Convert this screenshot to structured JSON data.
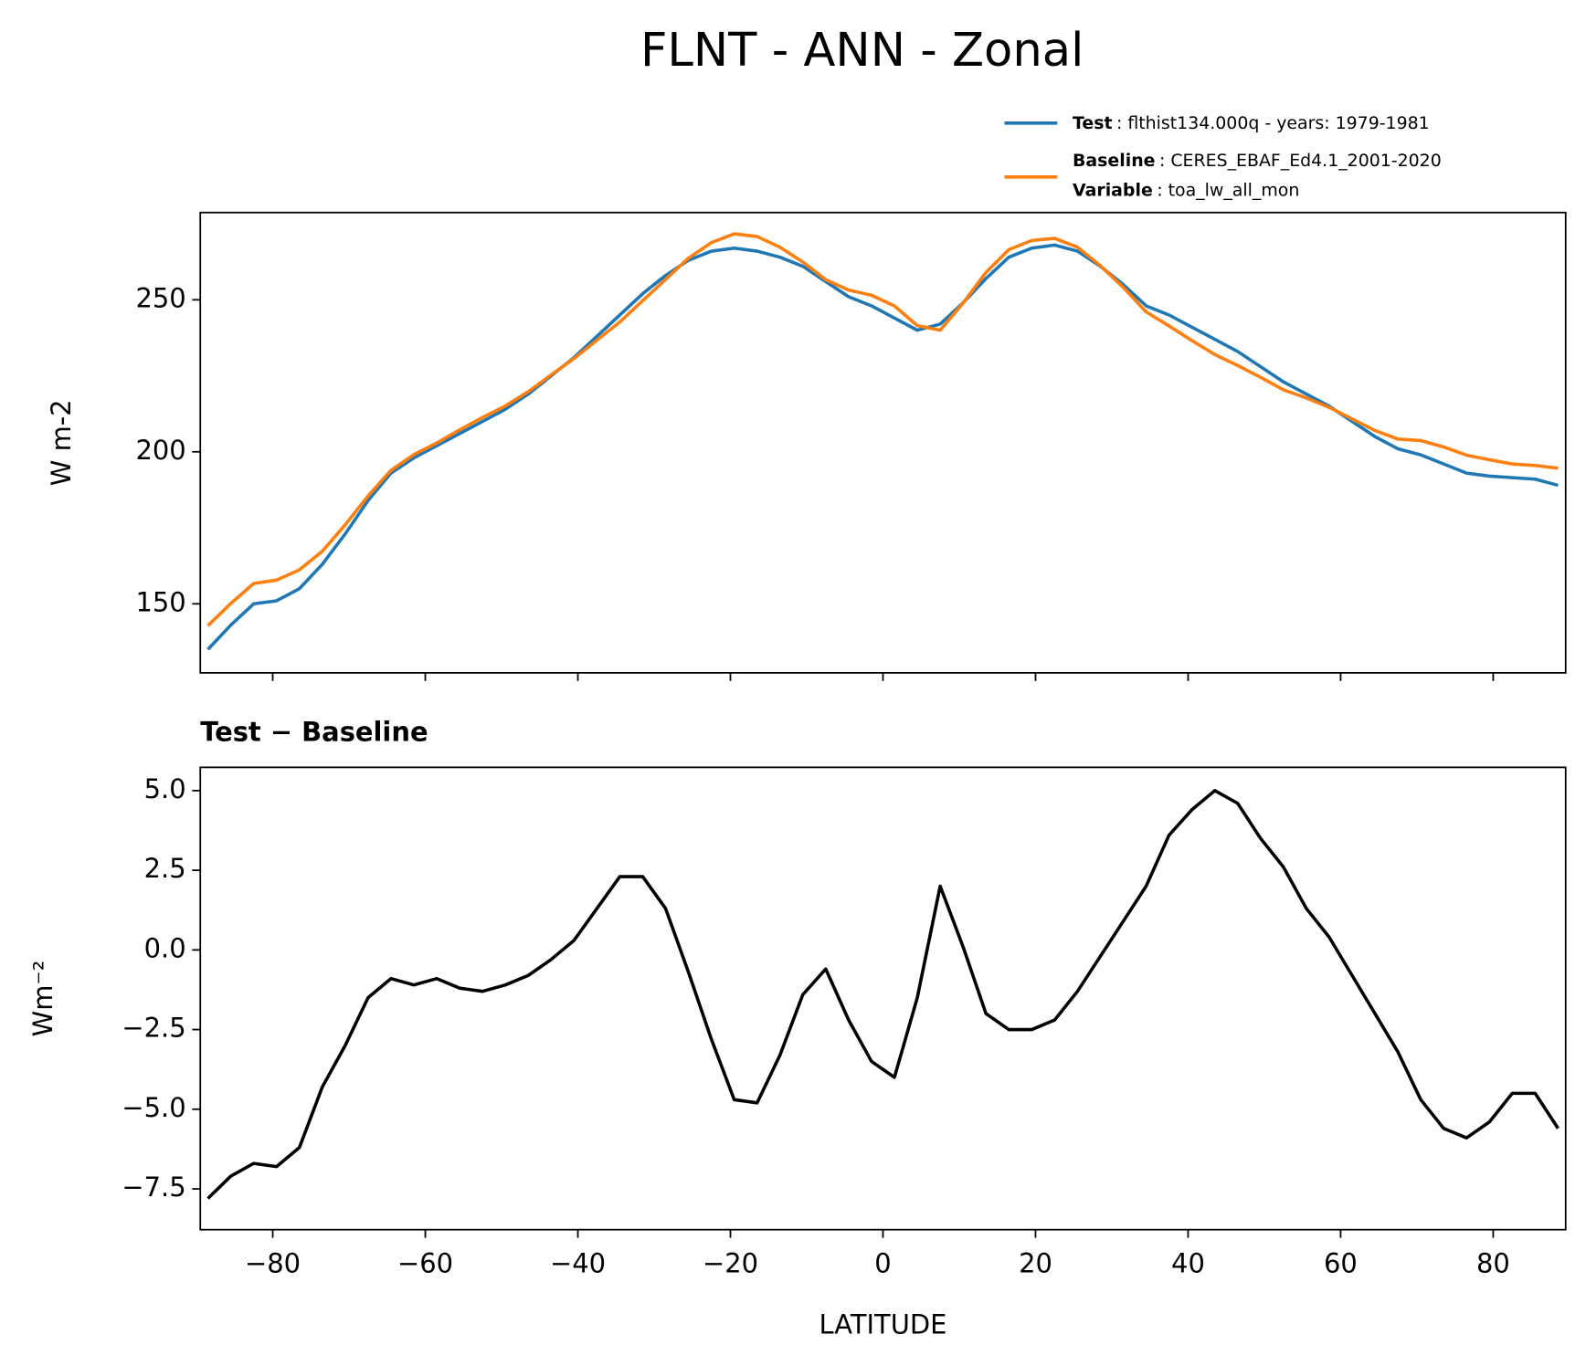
{
  "title": "FLNT - ANN - Zonal",
  "chart_data": [
    {
      "type": "line",
      "ylabel": "W m-2",
      "x": [
        -88.5,
        -85.5,
        -82.5,
        -79.5,
        -76.5,
        -73.5,
        -70.5,
        -67.5,
        -64.5,
        -61.5,
        -58.5,
        -55.5,
        -52.5,
        -49.5,
        -46.5,
        -43.5,
        -40.5,
        -37.5,
        -34.5,
        -31.5,
        -28.5,
        -25.5,
        -22.5,
        -19.5,
        -16.5,
        -13.5,
        -10.5,
        -7.5,
        -4.5,
        -1.5,
        1.5,
        4.5,
        7.5,
        10.5,
        13.5,
        16.5,
        19.5,
        22.5,
        25.5,
        28.5,
        31.5,
        34.5,
        37.5,
        40.5,
        43.5,
        46.5,
        49.5,
        52.5,
        55.5,
        58.5,
        61.5,
        64.5,
        67.5,
        70.5,
        73.5,
        76.5,
        79.5,
        82.5,
        85.5,
        88.5
      ],
      "series": [
        {
          "name": "Test",
          "description": ": flthist134.000q - years: 1979-1981",
          "color": "#1f77b4",
          "values": [
            135,
            143,
            150,
            151,
            155,
            163,
            173,
            184,
            193,
            198,
            202,
            206,
            210,
            214,
            219,
            225,
            231,
            238,
            245,
            252,
            258,
            263,
            266,
            267,
            266,
            264,
            261,
            256,
            251,
            248,
            244,
            240,
            242,
            249,
            257,
            264,
            267,
            268,
            266,
            261,
            255,
            248,
            245,
            241,
            237,
            233,
            228,
            223,
            219,
            215,
            210,
            205,
            201,
            199,
            196,
            193,
            192,
            191.5,
            191,
            189
          ]
        },
        {
          "name": "Baseline",
          "description": ": CERES_EBAF_Ed4.1_2001-2020",
          "color": "#ff7f0e",
          "values": [
            142.8,
            150.1,
            156.7,
            157.8,
            161.2,
            167.3,
            176,
            185.5,
            193.9,
            199.1,
            202.9,
            207.2,
            211.3,
            215.1,
            219.8,
            225.3,
            230.7,
            236.7,
            242.7,
            249.7,
            256.7,
            263.7,
            268.8,
            271.7,
            270.8,
            267.3,
            262.4,
            256.6,
            253.2,
            251.5,
            248,
            241.5,
            240,
            248.9,
            259,
            266.5,
            269.5,
            270.2,
            267.3,
            261.2,
            254.1,
            246,
            241.4,
            236.6,
            232,
            228.4,
            224.5,
            220.4,
            217.7,
            214.6,
            210.8,
            207,
            204.2,
            203.7,
            201.6,
            198.9,
            197.4,
            196,
            195.5,
            194.6
          ]
        }
      ],
      "legend_extra": {
        "name": "Variable",
        "description": ": toa_lw_all_mon"
      },
      "legend_position": "upper right outside",
      "xlim": [
        -89.5,
        89.5
      ],
      "xticks": [
        -80,
        -60,
        -40,
        -20,
        0,
        20,
        40,
        60,
        80
      ],
      "show_xtick_labels": false,
      "ylim": [
        127.3,
        278.7
      ],
      "yticks": [
        150,
        200,
        250
      ]
    },
    {
      "type": "line",
      "title": "Test − Baseline",
      "xlabel": "LATITUDE",
      "ylabel": "Wm⁻²",
      "x": [
        -88.5,
        -85.5,
        -82.5,
        -79.5,
        -76.5,
        -73.5,
        -70.5,
        -67.5,
        -64.5,
        -61.5,
        -58.5,
        -55.5,
        -52.5,
        -49.5,
        -46.5,
        -43.5,
        -40.5,
        -37.5,
        -34.5,
        -31.5,
        -28.5,
        -25.5,
        -22.5,
        -19.5,
        -16.5,
        -13.5,
        -10.5,
        -7.5,
        -4.5,
        -1.5,
        1.5,
        4.5,
        7.5,
        10.5,
        13.5,
        16.5,
        19.5,
        22.5,
        25.5,
        28.5,
        31.5,
        34.5,
        37.5,
        40.5,
        43.5,
        46.5,
        49.5,
        52.5,
        55.5,
        58.5,
        61.5,
        64.5,
        67.5,
        70.5,
        73.5,
        76.5,
        79.5,
        82.5,
        85.5,
        88.5
      ],
      "series": [
        {
          "color": "#000000",
          "values": [
            -7.8,
            -7.1,
            -6.7,
            -6.8,
            -6.2,
            -4.3,
            -3.0,
            -1.5,
            -0.9,
            -1.1,
            -0.9,
            -1.2,
            -1.3,
            -1.1,
            -0.8,
            -0.3,
            0.3,
            1.3,
            2.3,
            2.3,
            1.3,
            -0.7,
            -2.8,
            -4.7,
            -4.8,
            -3.3,
            -1.4,
            -0.6,
            -2.2,
            -3.5,
            -4.0,
            -1.5,
            2.0,
            0.1,
            -2.0,
            -2.5,
            -2.5,
            -2.2,
            -1.3,
            -0.2,
            0.9,
            2.0,
            3.6,
            4.4,
            5.0,
            4.6,
            3.5,
            2.6,
            1.3,
            0.4,
            -0.8,
            -2.0,
            -3.2,
            -4.7,
            -5.6,
            -5.9,
            -5.4,
            -4.5,
            -4.5,
            -5.6
          ]
        }
      ],
      "xlim": [
        -89.5,
        89.5
      ],
      "xticks": [
        {
          "value": -80,
          "label": "−80"
        },
        {
          "value": -60,
          "label": "−60"
        },
        {
          "value": -40,
          "label": "−40"
        },
        {
          "value": -20,
          "label": "−20"
        },
        0,
        20,
        40,
        60,
        80
      ],
      "show_xtick_labels": true,
      "ylim": [
        -8.78,
        5.73
      ],
      "yticks": [
        {
          "value": -7.5,
          "label": "−7.5"
        },
        {
          "value": -5,
          "label": "−5.0"
        },
        {
          "value": -2.5,
          "label": "−2.5"
        },
        {
          "value": 0,
          "label": "0.0"
        },
        {
          "value": 2.5,
          "label": "2.5"
        },
        {
          "value": 5,
          "label": "5.0"
        }
      ]
    }
  ]
}
